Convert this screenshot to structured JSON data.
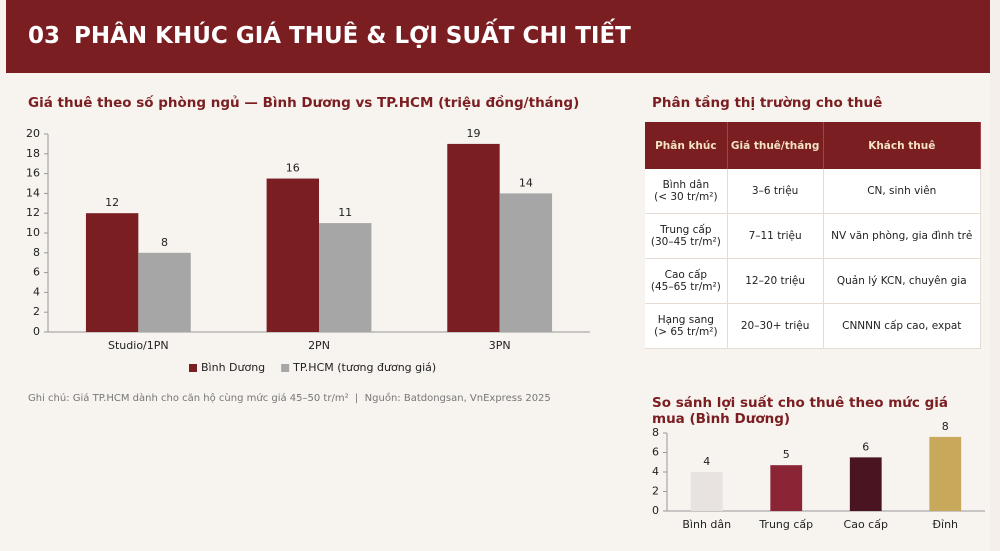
{
  "header": {
    "number": "03",
    "title": "PHÂN KHÚC GIÁ THUÊ & LỢI SUẤT CHI TIẾT"
  },
  "chart_data": [
    {
      "type": "bar",
      "title": "Giá thuê theo số phòng ngủ — Bình Dương vs TP.HCM (triệu đồng/tháng)",
      "categories": [
        "Studio/1PN",
        "2PN",
        "3PN"
      ],
      "series": [
        {
          "name": "Bình Dương",
          "color": "#7b1e22",
          "values": [
            12,
            15.5,
            19
          ],
          "value_labels": [
            "12",
            "16",
            "19"
          ]
        },
        {
          "name": "TP.HCM (tương đương giá)",
          "color": "#a6a6a6",
          "values": [
            8,
            11,
            14
          ],
          "value_labels": [
            "8",
            "11",
            "14"
          ]
        }
      ],
      "ylim": [
        0,
        20
      ],
      "yticks": [
        0,
        2,
        4,
        6,
        8,
        10,
        12,
        14,
        16,
        18,
        20
      ],
      "legend": "bottom"
    },
    {
      "type": "bar",
      "title": "So sánh lợi suất cho thuê theo mức giá mua (Bình Dương)",
      "categories": [
        "Bình dân",
        "Trung cấp",
        "Cao cấp",
        "Đỉnh"
      ],
      "values": [
        4,
        4.7,
        5.5,
        7.6
      ],
      "value_labels": [
        "4",
        "5",
        "6",
        "8"
      ],
      "colors": [
        "#e8e3e0",
        "#8b2535",
        "#4a1420",
        "#c8a85a"
      ],
      "ylim": [
        0,
        8
      ],
      "yticks": [
        0,
        2,
        4,
        6,
        8
      ]
    }
  ],
  "note": "Ghi chú: Giá TP.HCM dành cho căn hộ cùng mức giá 45–50 tr/m²  |  Nguồn: Batdongsan, VnExpress 2025",
  "table": {
    "title": "Phân tầng thị trường cho thuê",
    "header": [
      "Phân khúc",
      "Giá thuê/tháng",
      "Khách thuê"
    ],
    "rows": [
      [
        "Bình dân\n(< 30 tr/m²)",
        "3–6 triệu",
        "CN, sinh viên"
      ],
      [
        "Trung cấp\n(30–45 tr/m²)",
        "7–11 triệu",
        "NV văn phòng, gia đình trẻ"
      ],
      [
        "Cao cấp\n(45–65 tr/m²)",
        "12–20 triệu",
        "Quản lý KCN, chuyên gia"
      ],
      [
        "Hạng sang\n(> 65 tr/m²)",
        "20–30+ triệu",
        "CNNNN cấp cao, expat"
      ]
    ]
  }
}
